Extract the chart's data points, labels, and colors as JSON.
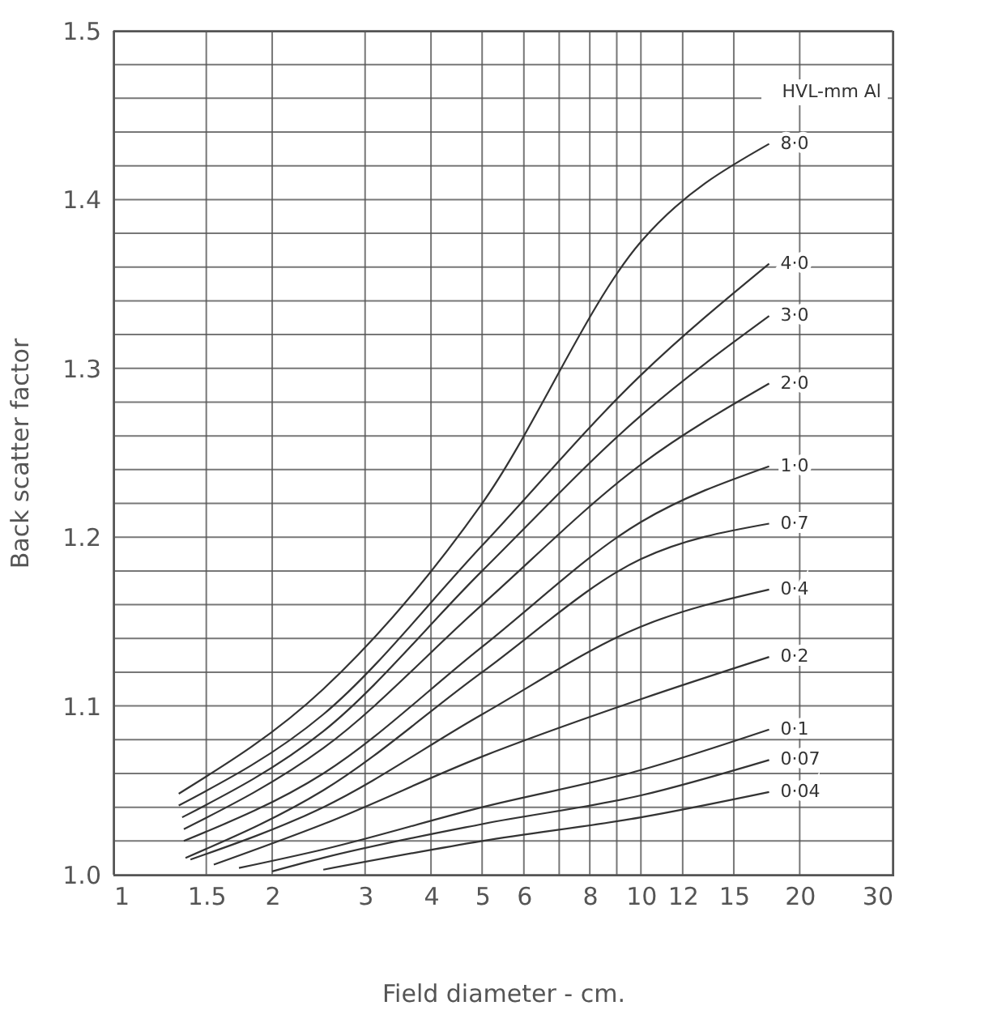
{
  "chart_data": {
    "type": "line",
    "xlabel": "Field diameter - cm.",
    "ylabel": "Back scatter factor",
    "legend_title": "HVL-mm Al",
    "log": "x",
    "grid": true,
    "legend": false,
    "marker": "none",
    "line_style": "solid",
    "xlim": [
      1,
      30
    ],
    "xticks": [
      1,
      1.5,
      2,
      3,
      4,
      5,
      6,
      {
        "value": 7,
        "label": null
      },
      8,
      {
        "value": 9,
        "label": null
      },
      10,
      12,
      15,
      20,
      30
    ],
    "ylim": [
      1,
      1.5
    ],
    "yticks": [
      {
        "value": 1,
        "label": "1.0"
      },
      {
        "value": 1.02,
        "label": null
      },
      {
        "value": 1.04,
        "label": null
      },
      {
        "value": 1.06,
        "label": null
      },
      {
        "value": 1.08,
        "label": null
      },
      {
        "value": 1.1,
        "label": "1.1"
      },
      {
        "value": 1.12,
        "label": null
      },
      {
        "value": 1.14,
        "label": null
      },
      {
        "value": 1.16,
        "label": null
      },
      {
        "value": 1.18,
        "label": null
      },
      {
        "value": 1.2,
        "label": "1.2"
      },
      {
        "value": 1.22,
        "label": null
      },
      {
        "value": 1.24,
        "label": null
      },
      {
        "value": 1.26,
        "label": null
      },
      {
        "value": 1.28,
        "label": null
      },
      {
        "value": 1.3,
        "label": "1.3"
      },
      {
        "value": 1.32,
        "label": null
      },
      {
        "value": 1.34,
        "label": null
      },
      {
        "value": 1.36,
        "label": null
      },
      {
        "value": 1.38,
        "label": null
      },
      {
        "value": 1.4,
        "label": "1.4"
      },
      {
        "value": 1.42,
        "label": null
      },
      {
        "value": 1.44,
        "label": null
      },
      {
        "value": 1.46,
        "label": null
      },
      {
        "value": 1.48,
        "label": null
      },
      {
        "value": 1.5,
        "label": "1.5"
      }
    ],
    "series": [
      {
        "name": "8·0",
        "color": "#333333",
        "x": [
          1.33,
          2.5,
          5,
          10,
          17.5
        ],
        "values": [
          1.048,
          1.11,
          1.22,
          1.375,
          1.433
        ]
      },
      {
        "name": "4·0",
        "color": "#333333",
        "x": [
          1.33,
          2.5,
          5,
          10,
          17.5
        ],
        "values": [
          1.041,
          1.095,
          1.195,
          1.296,
          1.362
        ]
      },
      {
        "name": "3·0",
        "color": "#333333",
        "x": [
          1.35,
          2.5,
          5,
          10,
          17.5
        ],
        "values": [
          1.034,
          1.085,
          1.18,
          1.272,
          1.331
        ]
      },
      {
        "name": "2·0",
        "color": "#333333",
        "x": [
          1.36,
          2.5,
          5,
          10,
          17.5
        ],
        "values": [
          1.027,
          1.075,
          1.16,
          1.243,
          1.291
        ]
      },
      {
        "name": "1·0",
        "color": "#333333",
        "x": [
          1.36,
          2.5,
          5,
          10,
          17.5
        ],
        "values": [
          1.02,
          1.06,
          1.135,
          1.209,
          1.242
        ]
      },
      {
        "name": "0·7",
        "color": "#333333",
        "x": [
          1.37,
          2.5,
          5,
          10,
          17.5
        ],
        "values": [
          1.01,
          1.05,
          1.12,
          1.187,
          1.208
        ]
      },
      {
        "name": "0·4",
        "color": "#333333",
        "x": [
          1.4,
          2.5,
          5,
          10,
          17.5
        ],
        "values": [
          1.009,
          1.04,
          1.095,
          1.147,
          1.169
        ]
      },
      {
        "name": "0·2",
        "color": "#333333",
        "x": [
          1.55,
          2.5,
          5,
          10,
          17.5
        ],
        "values": [
          1.006,
          1.03,
          1.07,
          1.104,
          1.129
        ]
      },
      {
        "name": "0·1",
        "color": "#333333",
        "x": [
          1.73,
          2.5,
          5,
          10,
          17.5
        ],
        "values": [
          1.004,
          1.015,
          1.04,
          1.062,
          1.086
        ]
      },
      {
        "name": "0·07",
        "color": "#333333",
        "x": [
          2.0,
          2.5,
          5,
          10,
          17.5
        ],
        "values": [
          1.002,
          1.01,
          1.03,
          1.047,
          1.068
        ]
      },
      {
        "name": "0·04",
        "color": "#333333",
        "x": [
          2.5,
          5,
          10,
          17.5
        ],
        "values": [
          1.003,
          1.02,
          1.034,
          1.049
        ]
      }
    ]
  }
}
